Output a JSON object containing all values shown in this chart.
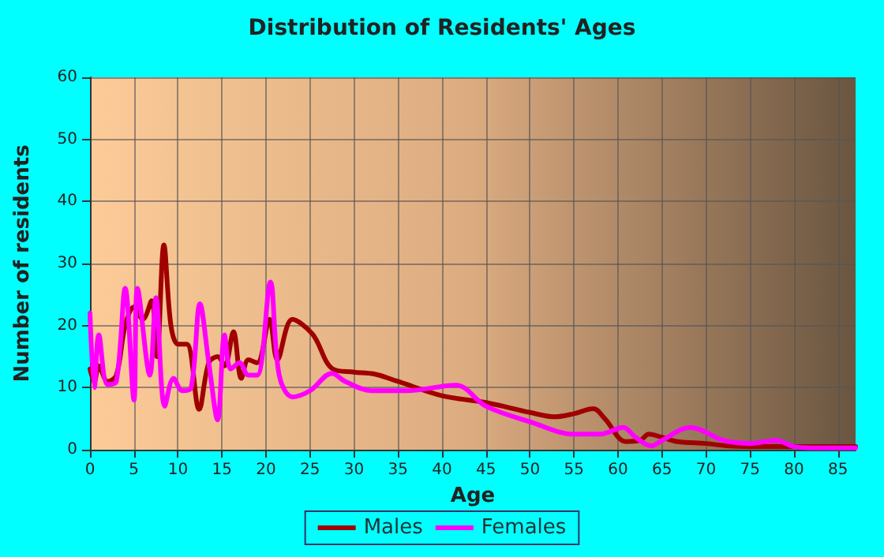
{
  "chart_data": {
    "type": "line",
    "title": "Distribution of Residents' Ages",
    "xlabel": "Age",
    "ylabel": "Number of residents",
    "xlim": [
      0,
      87
    ],
    "xticks": [
      0,
      5,
      10,
      15,
      20,
      25,
      30,
      35,
      40,
      45,
      50,
      55,
      60,
      65,
      70,
      75,
      80,
      85
    ],
    "ylim": [
      0,
      60
    ],
    "yticks": [
      0,
      10,
      20,
      30,
      40,
      50,
      60
    ],
    "grid": true,
    "legend": "bottom",
    "marker": "none",
    "line_style": "solid",
    "series": [
      {
        "name": "Males",
        "color": "#a00000",
        "x": [
          0,
          0.5,
          1,
          2,
          3,
          4,
          5,
          6,
          7,
          7.6,
          8.4,
          9.2,
          10,
          11,
          12.4,
          13.5,
          14.5,
          15.3,
          16.3,
          17.2,
          18,
          19,
          20.4,
          21.3,
          23,
          25.3,
          27.6,
          30,
          32.3,
          35,
          40,
          45,
          50,
          52.8,
          55,
          57.2,
          58.5,
          60.9,
          62.5,
          63.5,
          65,
          66.8,
          70,
          72.6,
          75,
          80,
          87
        ],
        "values": [
          13,
          11,
          13.5,
          11,
          12,
          20,
          23,
          21,
          24,
          15,
          33,
          20,
          17,
          17,
          6.5,
          14,
          15,
          13.5,
          19,
          11.5,
          14.5,
          14,
          21,
          14.5,
          21,
          18.6,
          13,
          12.5,
          12.2,
          11,
          8.7,
          7.6,
          6,
          5.3,
          5.8,
          6.6,
          5,
          1.3,
          1.5,
          2.5,
          2,
          1.3,
          1,
          0.6,
          0.5,
          0.5,
          0.5
        ]
      },
      {
        "name": "Females",
        "color": "#ff00ff",
        "x": [
          0,
          0.5,
          1,
          2,
          3,
          4,
          5,
          5.4,
          6.8,
          7.5,
          8.5,
          9.5,
          10.5,
          11.5,
          12.5,
          13.5,
          14.5,
          15.3,
          16,
          17,
          18,
          19,
          20.5,
          21.5,
          23,
          25,
          27.5,
          29,
          32,
          36,
          41.6,
          45,
          50,
          55,
          58,
          60.6,
          62,
          63.8,
          65,
          68.2,
          72,
          75,
          78,
          80,
          82,
          87
        ],
        "values": [
          22,
          10,
          18.5,
          10.5,
          11,
          26,
          8,
          26,
          12,
          24.5,
          7,
          11.5,
          9.5,
          10,
          23.5,
          14,
          4.8,
          18.5,
          13,
          14,
          12,
          12,
          27,
          12,
          8.5,
          9.5,
          12.3,
          11,
          9.5,
          9.5,
          10.4,
          7,
          4.5,
          2.5,
          2.5,
          3.6,
          2,
          0.6,
          1.5,
          3.6,
          1.5,
          1,
          1.5,
          0.5,
          0.3,
          0.3
        ]
      }
    ]
  }
}
